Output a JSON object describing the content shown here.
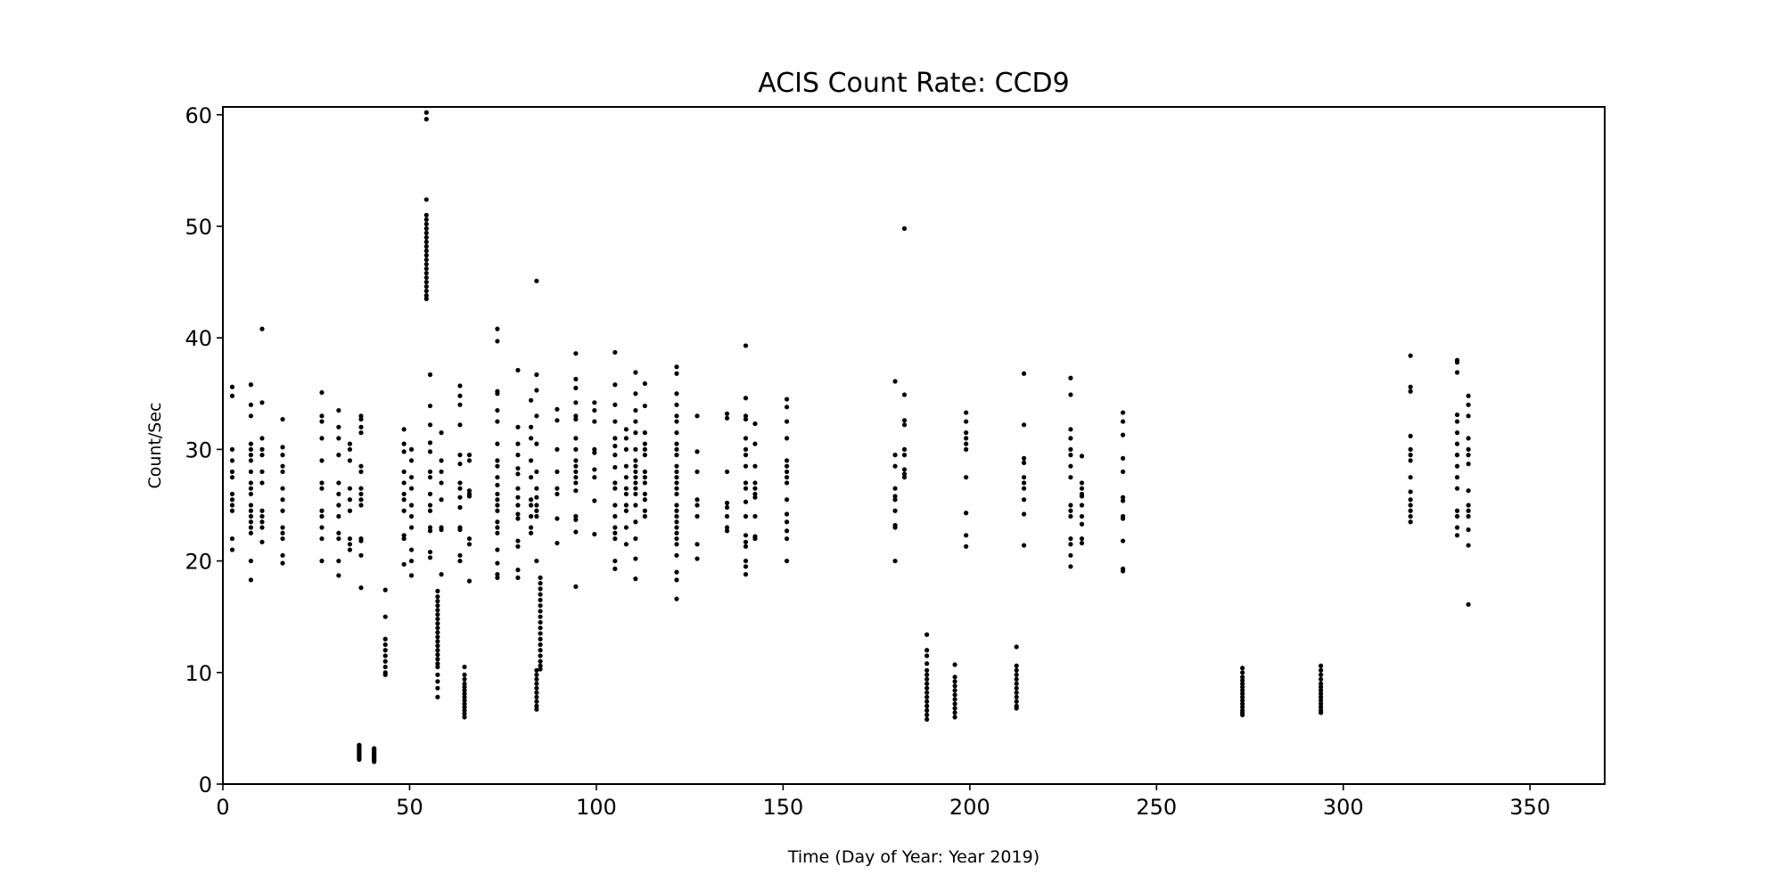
{
  "chart_data": {
    "type": "scatter",
    "title": "ACIS Count Rate: CCD9",
    "xlabel": "Time (Day of Year: Year 2019)",
    "ylabel": "Count/Sec",
    "xlim": [
      0,
      370
    ],
    "ylim": [
      0,
      60.7
    ],
    "xticks": [
      0,
      50,
      100,
      150,
      200,
      250,
      300,
      350
    ],
    "yticks": [
      0,
      10,
      20,
      30,
      40,
      50,
      60
    ],
    "grid": false,
    "marker_color": "#000000",
    "groups": [
      {
        "x": 2.5,
        "y": [
          35.6,
          34.8,
          30,
          29,
          28,
          27.5,
          26,
          25.5,
          25,
          24.5,
          22,
          21
        ]
      },
      {
        "x": 7.5,
        "y": [
          35.8,
          34,
          33,
          30.5,
          30,
          29.5,
          29,
          28,
          27,
          26.5,
          26,
          25,
          24.5,
          24,
          23.5,
          23,
          22.5,
          20,
          18.3
        ]
      },
      {
        "x": 10.5,
        "y": [
          40.8,
          34.2,
          31,
          30,
          29.5,
          28,
          27,
          24.5,
          24,
          23.5,
          23,
          21.7
        ]
      },
      {
        "x": 16,
        "y": [
          32.7,
          30.2,
          29.5,
          28.5,
          28,
          26.5,
          25.5,
          24.5,
          23,
          22.5,
          22,
          20.5,
          19.8
        ]
      },
      {
        "x": 26.5,
        "y": [
          35.1,
          33,
          32.5,
          31,
          29,
          27,
          26.5,
          24.5,
          24,
          23,
          22,
          20
        ]
      },
      {
        "x": 31,
        "y": [
          33.5,
          32,
          31,
          29.5,
          27,
          26,
          25,
          24,
          22.5,
          22,
          20,
          18.7
        ]
      },
      {
        "x": 34,
        "y": [
          30.5,
          30,
          29,
          26.5,
          25.5,
          24.5,
          22,
          21.5,
          21
        ]
      },
      {
        "x": 37,
        "y": [
          33,
          32.7,
          32,
          31.5,
          28.5,
          28,
          26.5,
          26,
          25.5,
          25,
          22,
          21.8,
          20.5,
          17.6
        ]
      },
      {
        "x": 36.5,
        "y": [
          3.5,
          3.4,
          3.3,
          3.2,
          3.1,
          3.0,
          2.9,
          2.8,
          2.7,
          2.6,
          2.5,
          2.4,
          2.3,
          2.2
        ]
      },
      {
        "x": 40.5,
        "y": [
          3.2,
          3.1,
          3.0,
          2.9,
          2.8,
          2.7,
          2.6,
          2.5,
          2.4,
          2.3,
          2.2,
          2.1,
          2.0
        ]
      },
      {
        "x": 43.5,
        "y": [
          17.4,
          15,
          13,
          12.5,
          12,
          11.5,
          11,
          10.5,
          10,
          9.8
        ]
      },
      {
        "x": 48.5,
        "y": [
          31.8,
          30.5,
          29.8,
          28,
          27,
          26,
          25.5,
          24.5,
          22.3,
          22,
          19.7
        ]
      },
      {
        "x": 50.5,
        "y": [
          30,
          29,
          27.5,
          26.5,
          25,
          24,
          23,
          21,
          20,
          18.7
        ]
      },
      {
        "x": 54.5,
        "y": [
          60.2,
          59.6,
          52.4,
          51,
          50.6,
          50.2,
          49.8,
          49.4,
          49,
          48.6,
          48.2,
          47.8,
          47.4,
          47,
          46.6,
          46.2,
          45.8,
          45.4,
          45,
          44.6,
          44.2,
          43.8,
          43.5
        ]
      },
      {
        "x": 55.5,
        "y": [
          36.7,
          33.9,
          32.2,
          30.6,
          29.8,
          28,
          27.5,
          26,
          25,
          24.5,
          23,
          22.7,
          20.8,
          20.3
        ]
      },
      {
        "x": 57.5,
        "y": [
          17.3,
          16.8,
          16.4,
          16,
          15.6,
          15.2,
          14.8,
          14.4,
          14,
          13.6,
          13.2,
          12.8,
          12.4,
          12,
          11.6,
          11.2,
          10.8,
          10.5,
          9.8,
          9.2,
          8.6,
          7.8
        ]
      },
      {
        "x": 58.5,
        "y": [
          31.5,
          29,
          28,
          27,
          25.5,
          23,
          22.8,
          18.8
        ]
      },
      {
        "x": 63.5,
        "y": [
          35.7,
          34.8,
          34,
          32.2,
          29.5,
          28.7,
          27,
          26.5,
          25.7,
          24.8,
          23,
          22.8,
          20.5,
          20
        ]
      },
      {
        "x": 64.7,
        "y": [
          10.5,
          9.8,
          9.4,
          9,
          8.7,
          8.4,
          8.1,
          7.8,
          7.5,
          7.2,
          6.9,
          6.6,
          6.3,
          6
        ]
      },
      {
        "x": 66,
        "y": [
          29.5,
          29,
          26.3,
          26,
          25.8,
          22,
          21.5,
          18.2
        ]
      },
      {
        "x": 73.5,
        "y": [
          40.8,
          39.7,
          35.2,
          35,
          33.5,
          32.5,
          30.5,
          29,
          28.5,
          27.5,
          26.8,
          26,
          25.5,
          25,
          24.5,
          23.5,
          23,
          22.5,
          21,
          19.8,
          18.8,
          18.5
        ]
      },
      {
        "x": 79,
        "y": [
          37.1,
          32,
          30.5,
          29.5,
          28.3,
          27.8,
          26.5,
          25.7,
          25,
          24.2,
          23.8,
          21.8,
          21.3,
          19.2,
          18.5
        ]
      },
      {
        "x": 82.5,
        "y": [
          34.4,
          32,
          31,
          29,
          27.5,
          25.5,
          25,
          24,
          23,
          22.5
        ]
      },
      {
        "x": 84,
        "y": [
          45.1,
          36.7,
          35.3,
          33,
          30.5,
          28,
          26.5,
          25.7,
          25,
          24.5,
          24,
          20,
          10.2,
          9.8,
          9.4,
          9,
          8.6,
          8.2,
          7.8,
          7.4,
          7,
          6.7
        ]
      },
      {
        "x": 85,
        "y": [
          18.5,
          18,
          17.5,
          17,
          16.5,
          16,
          15.5,
          15,
          14.5,
          14,
          13.5,
          13,
          12.5,
          12,
          11.5,
          11,
          10.6,
          10.3
        ]
      },
      {
        "x": 89.5,
        "y": [
          33.6,
          32.6,
          30,
          28,
          26.5,
          26,
          23.8,
          21.6
        ]
      },
      {
        "x": 94.5,
        "y": [
          38.6,
          36.3,
          35.5,
          34.2,
          33,
          32.7,
          31,
          30,
          29,
          28.5,
          28,
          27.5,
          27,
          26.3,
          24,
          23.7,
          22.6,
          17.7
        ]
      },
      {
        "x": 99.5,
        "y": [
          34.2,
          33.5,
          32.5,
          30,
          29.7,
          28.2,
          27.5,
          25.4,
          22.4
        ]
      },
      {
        "x": 105,
        "y": [
          38.7,
          35.8,
          34,
          32.5,
          31,
          30.3,
          29.5,
          28.4,
          27,
          26.5,
          25,
          24,
          23,
          22.5,
          22,
          20,
          19.3
        ]
      },
      {
        "x": 108,
        "y": [
          31.8,
          31,
          30,
          28.5,
          27.5,
          26.5,
          26,
          25,
          24.5,
          23,
          21.5
        ]
      },
      {
        "x": 110.5,
        "y": [
          36.9,
          35,
          33.5,
          32.5,
          31.5,
          30,
          29,
          28.5,
          28,
          27.5,
          27,
          26.5,
          26,
          25,
          23.5,
          22,
          20.2,
          18.4
        ]
      },
      {
        "x": 113,
        "y": [
          35.9,
          33.9,
          31.5,
          30.5,
          30,
          29.5,
          28,
          27.5,
          27,
          26,
          25.5,
          24.5,
          24
        ]
      },
      {
        "x": 121.5,
        "y": [
          37.4,
          36.8,
          35,
          34,
          33,
          32.5,
          31.5,
          30.5,
          30,
          29.5,
          28.5,
          28,
          27.5,
          27,
          26.5,
          26,
          25,
          24.5,
          24,
          23.5,
          23,
          22.5,
          22,
          21.5,
          20.5,
          19,
          18.3,
          16.6
        ]
      },
      {
        "x": 127,
        "y": [
          33,
          29.8,
          28,
          25.5,
          25,
          24,
          21.5,
          20.2
        ]
      },
      {
        "x": 135,
        "y": [
          33.2,
          32.8,
          28,
          25.2,
          24.8,
          24,
          23,
          22.7
        ]
      },
      {
        "x": 140,
        "y": [
          39.3,
          34.6,
          33,
          32.7,
          31,
          30,
          29.5,
          28.5,
          27,
          26.5,
          25.3,
          24,
          22.3,
          21.7,
          21.3,
          20,
          19.5,
          18.8
        ]
      },
      {
        "x": 142.5,
        "y": [
          32.3,
          30.5,
          28.5,
          27,
          26.5,
          26,
          25.7,
          24,
          22.2,
          22
        ]
      },
      {
        "x": 151,
        "y": [
          34.5,
          33.8,
          32.5,
          31,
          29,
          28.5,
          28,
          27.5,
          27,
          25.5,
          24.2,
          23.5,
          22.7,
          22,
          20
        ]
      },
      {
        "x": 180,
        "y": [
          36.1,
          29.5,
          28.5,
          26.5,
          25.8,
          25.5,
          24.5,
          23.2,
          23,
          20
        ]
      },
      {
        "x": 182.5,
        "y": [
          49.8,
          34.9,
          32.6,
          32.2,
          30,
          29.5,
          28.2,
          27.8,
          27.5
        ]
      },
      {
        "x": 188.5,
        "y": [
          13.4,
          12,
          11.5,
          10.8,
          10.2,
          9.8,
          9.4,
          9,
          8.6,
          8.2,
          7.8,
          7.4,
          7,
          6.6,
          6.2,
          5.8
        ]
      },
      {
        "x": 196,
        "y": [
          10.7,
          9.6,
          9.2,
          8.8,
          8.4,
          8,
          7.6,
          7.2,
          6.8,
          6.4,
          6
        ]
      },
      {
        "x": 199,
        "y": [
          33.3,
          32.5,
          31.5,
          31,
          30.5,
          30,
          27.5,
          24.3,
          22.3,
          21.3
        ]
      },
      {
        "x": 212.5,
        "y": [
          12.3,
          10.6,
          10.2,
          9.8,
          9.4,
          9,
          8.6,
          8.2,
          7.8,
          7.4,
          7,
          6.8
        ]
      },
      {
        "x": 214.5,
        "y": [
          36.8,
          32.2,
          29.2,
          28.8,
          27.5,
          27,
          26.5,
          25.5,
          24.2,
          21.4
        ]
      },
      {
        "x": 227,
        "y": [
          36.4,
          34.9,
          31.8,
          31,
          30,
          29.5,
          28.5,
          27.5,
          25,
          24.5,
          24,
          22,
          21.5,
          20.5,
          19.5
        ]
      },
      {
        "x": 230,
        "y": [
          29.4,
          27,
          26.5,
          26,
          25.8,
          25,
          24,
          23.3,
          22,
          21.6
        ]
      },
      {
        "x": 241,
        "y": [
          33.3,
          32.5,
          31.3,
          29.2,
          28,
          25.7,
          25.4,
          24,
          23.8,
          21.8,
          19.3,
          19.1
        ]
      },
      {
        "x": 273,
        "y": [
          10.4,
          10,
          9.6,
          9.3,
          9,
          8.7,
          8.4,
          8.1,
          7.8,
          7.5,
          7.2,
          6.9,
          6.6,
          6.4,
          6.2
        ]
      },
      {
        "x": 294,
        "y": [
          10.6,
          10.2,
          9.8,
          9.4,
          9,
          8.7,
          8.4,
          8.1,
          7.8,
          7.5,
          7.2,
          6.9,
          6.6,
          6.4
        ]
      },
      {
        "x": 318,
        "y": [
          38.4,
          35.6,
          35.2,
          31.2,
          30,
          29.5,
          29,
          27.5,
          26.2,
          25.5,
          25,
          24.5,
          24,
          23.5
        ]
      },
      {
        "x": 330.5,
        "y": [
          38,
          37.8,
          36.9,
          33.1,
          32.5,
          31.5,
          30.5,
          29.5,
          28.5,
          27.5,
          26.5,
          24.5,
          24,
          23,
          22.3
        ]
      },
      {
        "x": 333.5,
        "y": [
          34.8,
          34,
          33,
          31,
          30,
          29.5,
          28.7,
          26.3,
          25,
          24.5,
          24,
          22.8,
          21.4,
          16.1
        ]
      }
    ]
  }
}
